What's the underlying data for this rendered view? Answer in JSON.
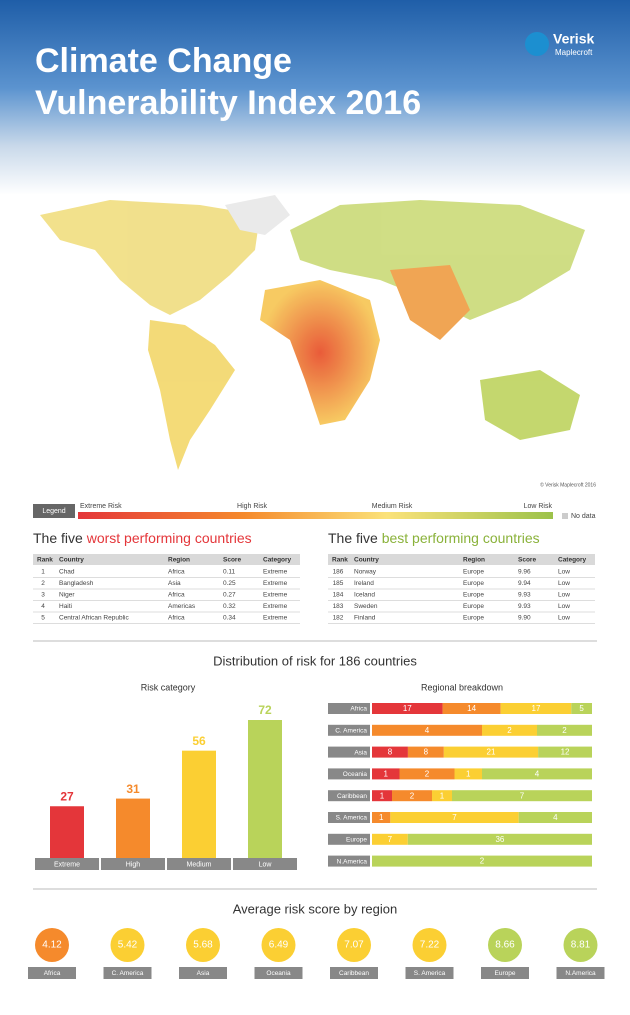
{
  "header": {
    "title_line1": "Climate Change",
    "title_line2": "Vulnerability Index 2016",
    "logo_name": "Verisk",
    "logo_sub": "Maplecroft",
    "map_credit": "© Verisk Maplecroft 2016"
  },
  "legend": {
    "label": "Legend",
    "extreme": "Extreme Risk",
    "high": "High Risk",
    "medium": "Medium Risk",
    "low": "Low Risk",
    "no_data": "No data"
  },
  "worst": {
    "title_prefix": "The five ",
    "title_highlight": "worst performing countries",
    "columns": [
      "Rank",
      "Country",
      "Region",
      "Score",
      "Category"
    ],
    "rows": [
      [
        "1",
        "Chad",
        "Africa",
        "0.11",
        "Extreme"
      ],
      [
        "2",
        "Bangladesh",
        "Asia",
        "0.25",
        "Extreme"
      ],
      [
        "3",
        "Niger",
        "Africa",
        "0.27",
        "Extreme"
      ],
      [
        "4",
        "Haiti",
        "Americas",
        "0.32",
        "Extreme"
      ],
      [
        "5",
        "Central African Republic",
        "Africa",
        "0.34",
        "Extreme"
      ]
    ]
  },
  "best": {
    "title_prefix": "The five ",
    "title_highlight": "best performing countries",
    "columns": [
      "Rank",
      "Country",
      "Region",
      "Score",
      "Category"
    ],
    "rows": [
      [
        "186",
        "Norway",
        "Europe",
        "9.96",
        "Low"
      ],
      [
        "185",
        "Ireland",
        "Europe",
        "9.94",
        "Low"
      ],
      [
        "184",
        "Iceland",
        "Europe",
        "9.93",
        "Low"
      ],
      [
        "183",
        "Sweden",
        "Europe",
        "9.93",
        "Low"
      ],
      [
        "182",
        "Finland",
        "Europe",
        "9.90",
        "Low"
      ]
    ]
  },
  "distribution_title": "Distribution of risk for 186 countries",
  "chart_data": [
    {
      "type": "bar",
      "title": "Risk category",
      "categories": [
        "Extreme",
        "High",
        "Medium",
        "Low"
      ],
      "values": [
        27,
        31,
        56,
        72
      ],
      "colors": [
        "#e4363a",
        "#f58a2c",
        "#fbcf33",
        "#b9d35a"
      ]
    },
    {
      "type": "stackedbar",
      "title": "Regional breakdown",
      "categories": [
        "Africa",
        "C. America",
        "Asia",
        "Oceania",
        "Caribbean",
        "S. America",
        "Europe",
        "N.America"
      ],
      "series": [
        {
          "color": "#e4363a",
          "values": [
            17,
            null,
            8,
            1,
            1,
            null,
            null,
            null
          ]
        },
        {
          "color": "#f58a2c",
          "values": [
            14,
            4,
            8,
            2,
            2,
            1,
            null,
            null
          ]
        },
        {
          "color": "#fbcf33",
          "values": [
            17,
            2,
            21,
            1,
            1,
            7,
            7,
            null
          ]
        },
        {
          "color": "#b9d35a",
          "values": [
            5,
            2,
            12,
            4,
            7,
            4,
            36,
            2
          ]
        }
      ]
    },
    {
      "type": "dot",
      "title": "Average risk score by region",
      "categories": [
        "Africa",
        "C. America",
        "Asia",
        "Oceania",
        "Caribbean",
        "S. America",
        "Europe",
        "N.America"
      ],
      "values": [
        4.12,
        5.42,
        5.68,
        6.49,
        7.07,
        7.22,
        8.66,
        8.81
      ],
      "colors": [
        "#f58a2c",
        "#fbcf33",
        "#fbcf33",
        "#fbcf33",
        "#fbcf33",
        "#fbcf33",
        "#b9d35a",
        "#b9d35a"
      ]
    }
  ]
}
